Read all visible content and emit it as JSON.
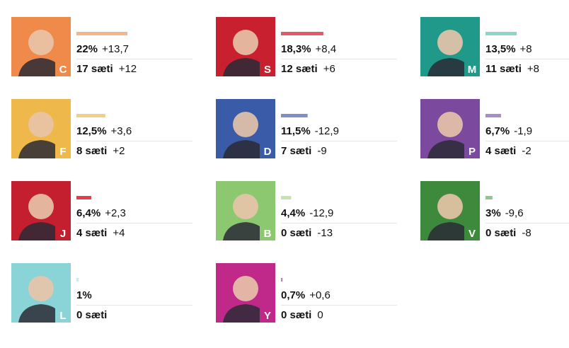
{
  "parties": [
    {
      "letter": "C",
      "color": "#f08a4b",
      "bar_color": "#f5b48c",
      "share": 22,
      "share_label": "22%",
      "share_change": "+13,7",
      "seats": "17 sæti",
      "seat_change": "+12"
    },
    {
      "letter": "S",
      "color": "#c8202f",
      "bar_color": "#e25a68",
      "share": 18.3,
      "share_label": "18,3%",
      "share_change": "+8,4",
      "seats": "12 sæti",
      "seat_change": "+6"
    },
    {
      "letter": "M",
      "color": "#1f9a8a",
      "bar_color": "#8fd4c8",
      "share": 13.5,
      "share_label": "13,5%",
      "share_change": "+8",
      "seats": "11 sæti",
      "seat_change": "+8"
    },
    {
      "letter": "F",
      "color": "#efb84a",
      "bar_color": "#f2d08c",
      "share": 12.5,
      "share_label": "12,5%",
      "share_change": "+3,6",
      "seats": "8 sæti",
      "seat_change": "+2"
    },
    {
      "letter": "D",
      "color": "#3a5ba8",
      "bar_color": "#7f8ec8",
      "share": 11.5,
      "share_label": "11,5%",
      "share_change": "-12,9",
      "seats": "7 sæti",
      "seat_change": "-9"
    },
    {
      "letter": "P",
      "color": "#7b4a9e",
      "bar_color": "#a98cc8",
      "share": 6.7,
      "share_label": "6,7%",
      "share_change": "-1,9",
      "seats": "4 sæti",
      "seat_change": "-2"
    },
    {
      "letter": "J",
      "color": "#c41f2e",
      "bar_color": "#e0404a",
      "share": 6.4,
      "share_label": "6,4%",
      "share_change": "+2,3",
      "seats": "4 sæti",
      "seat_change": "+4"
    },
    {
      "letter": "B",
      "color": "#8cc870",
      "bar_color": "#c5e3b0",
      "share": 4.4,
      "share_label": "4,4%",
      "share_change": "-12,9",
      "seats": "0 sæti",
      "seat_change": "-13"
    },
    {
      "letter": "V",
      "color": "#3d8a3d",
      "bar_color": "#8fc88a",
      "share": 3,
      "share_label": "3%",
      "share_change": "-9,6",
      "seats": "0 sæti",
      "seat_change": "-8"
    },
    {
      "letter": "L",
      "color": "#8ad4d8",
      "bar_color": "#c5ecee",
      "share": 1,
      "share_label": "1%",
      "seats": "0 sæti"
    },
    {
      "letter": "Y",
      "color": "#c0288a",
      "bar_color": "#d870b0",
      "share": 0.7,
      "share_label": "0,7%",
      "share_change": "+0,6",
      "seats": "0 sæti",
      "seat_change": "0"
    }
  ]
}
